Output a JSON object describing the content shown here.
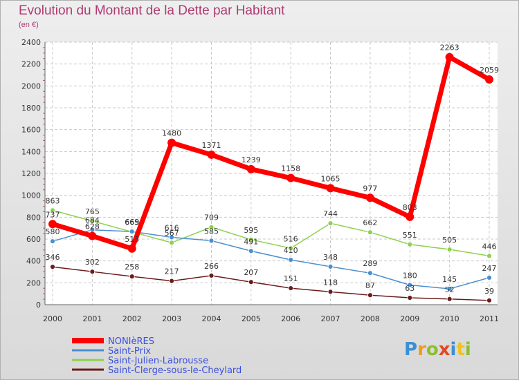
{
  "title": "Evolution du Montant de la Dette par Habitant",
  "subtitle": "(en €)",
  "logo": {
    "letters": [
      "P",
      "r",
      "o",
      "x",
      "i",
      "t",
      "i"
    ]
  },
  "chart_data": {
    "type": "line",
    "title": "Evolution du Montant de la Dette par Habitant",
    "subtitle": "(en €)",
    "x": [
      "2000",
      "2001",
      "2002",
      "2003",
      "2004",
      "2005",
      "2006",
      "2007",
      "2008",
      "2009",
      "2010",
      "2011"
    ],
    "ylim": [
      0,
      2400
    ],
    "yticks": [
      0,
      200,
      400,
      600,
      800,
      1000,
      1200,
      1400,
      1600,
      1800,
      2000,
      2200,
      2400
    ],
    "grid": true,
    "legend_position": "bottom-left",
    "series": [
      {
        "name": "NONIèRES",
        "color": "#ff0000",
        "values": [
          737,
          628,
          513,
          1480,
          1371,
          1239,
          1158,
          1065,
          977,
          803,
          2263,
          2059
        ],
        "labels": [
          "737",
          "628",
          "513",
          "1480",
          "1371",
          "1239",
          "1158",
          "1065",
          "977",
          "803",
          "2263",
          "2059"
        ]
      },
      {
        "name": "Saint-Prix",
        "color": "#4a8fcf",
        "values": [
          580,
          684,
          669,
          616,
          585,
          491,
          410,
          348,
          289,
          180,
          145,
          247
        ],
        "labels": [
          "580",
          "684",
          "669",
          "616",
          "585",
          "491",
          "410",
          "348",
          "289",
          "180",
          "145",
          "247"
        ]
      },
      {
        "name": "Saint-Julien-Labrousse",
        "color": "#8fd14f",
        "values": [
          863,
          765,
          665,
          567,
          709,
          595,
          516,
          744,
          662,
          551,
          505,
          446
        ],
        "labels": [
          "863",
          "765",
          "665",
          "567",
          "709",
          "595",
          "516",
          "744",
          "662",
          "551",
          "505",
          "446"
        ]
      },
      {
        "name": "Saint-Clerge-sous-le-Cheylard",
        "color": "#6b1b1b",
        "values": [
          346,
          302,
          258,
          217,
          266,
          207,
          151,
          118,
          87,
          63,
          52,
          39
        ],
        "labels": [
          "346",
          "302",
          "258",
          "217",
          "266",
          "207",
          "151",
          "118",
          "87",
          "63",
          "52",
          "39"
        ]
      }
    ]
  }
}
